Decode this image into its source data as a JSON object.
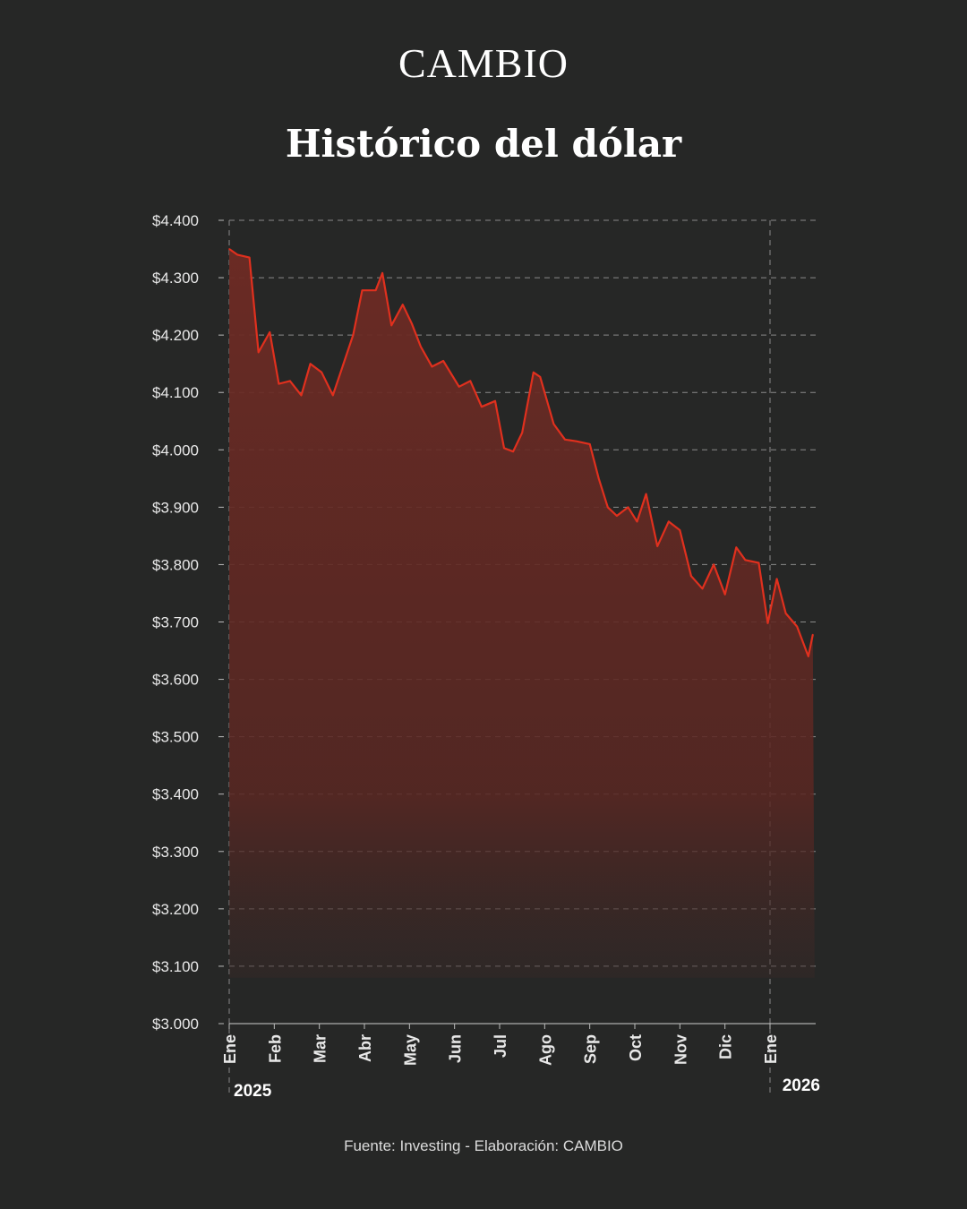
{
  "brand": "CAMBIO",
  "title": "Histórico del dólar",
  "source": "Fuente: Investing - Elaboración: CAMBIO",
  "colors": {
    "background": "#262726",
    "line": "#e0301e",
    "area": "#6e2b24",
    "text": "#ffffff",
    "grid": "#8a8a8a"
  },
  "chart_data": {
    "type": "area",
    "title": "Histórico del dólar",
    "xlabel": "",
    "ylabel": "",
    "ylim": [
      3000,
      4400
    ],
    "yticks": [
      3000,
      3100,
      3200,
      3300,
      3400,
      3500,
      3600,
      3700,
      3800,
      3900,
      4000,
      4100,
      4200,
      4300,
      4400
    ],
    "ytick_labels": [
      "$3.000",
      "$3.100",
      "$3.200",
      "$3.300",
      "$3.400",
      "$3.500",
      "$3.600",
      "$3.700",
      "$3.800",
      "$3.900",
      "$4.000",
      "$4.100",
      "$4.200",
      "$4.300",
      "$4.400"
    ],
    "months": [
      {
        "label": "Ene",
        "t": 0
      },
      {
        "label": "Feb",
        "t": 1
      },
      {
        "label": "Mar",
        "t": 2
      },
      {
        "label": "Abr",
        "t": 3
      },
      {
        "label": "May",
        "t": 4
      },
      {
        "label": "Jun",
        "t": 5
      },
      {
        "label": "Jul",
        "t": 6
      },
      {
        "label": "Ago",
        "t": 7
      },
      {
        "label": "Sep",
        "t": 8
      },
      {
        "label": "Oct",
        "t": 9
      },
      {
        "label": "Nov",
        "t": 10
      },
      {
        "label": "Dic",
        "t": 11
      },
      {
        "label": "Ene",
        "t": 12
      }
    ],
    "year_labels": [
      {
        "label": "2025",
        "t": 0
      },
      {
        "label": "2026",
        "t": 12
      }
    ],
    "grid": true,
    "series": [
      {
        "t": [
          0,
          0.18,
          0.45,
          0.65,
          0.9,
          1.1,
          1.35,
          1.6,
          1.8,
          2.05,
          2.3,
          2.75,
          2.95,
          3.25,
          3.4,
          3.6,
          3.85,
          4.05,
          4.25,
          4.5,
          4.75,
          5.1,
          5.35,
          5.6,
          5.9,
          6.1,
          6.3,
          6.5,
          6.75,
          6.9,
          7.2,
          7.45,
          7.7,
          8.0,
          8.2,
          8.4,
          8.6,
          8.85,
          9.05,
          9.25,
          9.5,
          9.75,
          10.0,
          10.25,
          10.5,
          10.75,
          11.0,
          11.25,
          11.45,
          11.75,
          11.95,
          12.15,
          12.35,
          12.6,
          12.85,
          12.95
        ],
        "y": [
          4350,
          4340,
          4335,
          4170,
          4205,
          4115,
          4120,
          4095,
          4150,
          4135,
          4095,
          4200,
          4278,
          4278,
          4308,
          4217,
          4253,
          4220,
          4180,
          4145,
          4155,
          4110,
          4120,
          4075,
          4085,
          4003,
          3997,
          4030,
          4135,
          4127,
          4045,
          4018,
          4015,
          4010,
          3950,
          3900,
          3885,
          3900,
          3875,
          3923,
          3832,
          3875,
          3860,
          3780,
          3758,
          3800,
          3748,
          3830,
          3808,
          3803,
          3698,
          3775,
          3715,
          3692,
          3640,
          3678
        ]
      }
    ]
  }
}
